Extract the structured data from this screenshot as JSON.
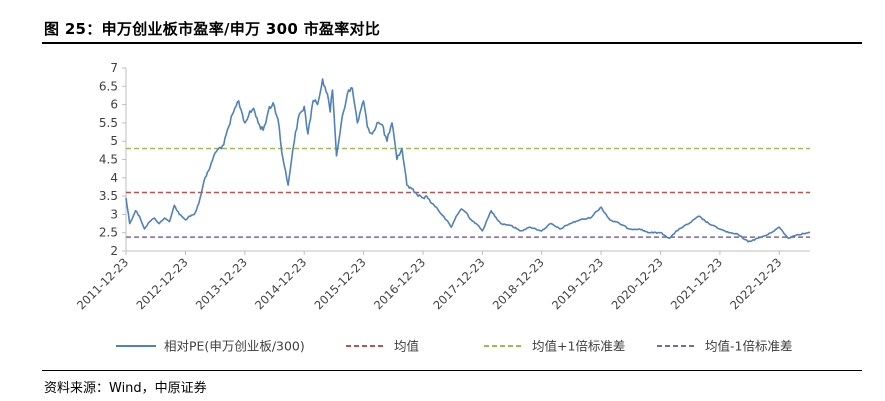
{
  "header": {
    "title": "图 25：申万创业板市盈率/申万 300 市盈率对比"
  },
  "footer": {
    "source": "资料来源：Wind，中原证券"
  },
  "chart_data": {
    "type": "line",
    "title": "",
    "xlabel": "",
    "ylabel": "",
    "ylim": [
      2,
      7
    ],
    "yticks": [
      "2",
      "2.5",
      "3",
      "3.5",
      "4",
      "4.5",
      "5",
      "5.5",
      "6",
      "6.5",
      "7"
    ],
    "xticks": [
      "2011-12-23",
      "2012-12-23",
      "2013-12-23",
      "2014-12-23",
      "2015-12-23",
      "2016-12-23",
      "2017-12-23",
      "2018-12-23",
      "2019-12-23",
      "2020-12-23",
      "2021-12-23",
      "2022-12-23"
    ],
    "xlim": [
      "2011-12-23",
      "2023-06-30"
    ],
    "grid": false,
    "legend": "bottom",
    "series": [
      {
        "name": "相对PE(申万创业板/300)",
        "color": "#4f81bd",
        "style": "solid",
        "x": [
          "2011-12-23",
          "2012-01-15",
          "2012-02-20",
          "2012-03-15",
          "2012-04-15",
          "2012-05-15",
          "2012-06-15",
          "2012-07-15",
          "2012-08-15",
          "2012-09-15",
          "2012-10-15",
          "2012-11-15",
          "2012-12-23",
          "2013-01-15",
          "2013-02-15",
          "2013-03-15",
          "2013-04-15",
          "2013-05-15",
          "2013-06-15",
          "2013-07-15",
          "2013-08-15",
          "2013-09-15",
          "2013-10-15",
          "2013-11-15",
          "2013-12-23",
          "2014-01-15",
          "2014-02-15",
          "2014-03-15",
          "2014-04-15",
          "2014-05-15",
          "2014-06-15",
          "2014-07-15",
          "2014-08-15",
          "2014-09-15",
          "2014-10-15",
          "2014-11-15",
          "2014-12-23",
          "2015-01-15",
          "2015-02-15",
          "2015-03-15",
          "2015-04-15",
          "2015-05-15",
          "2015-06-01",
          "2015-06-15",
          "2015-07-10",
          "2015-08-15",
          "2015-09-15",
          "2015-10-15",
          "2015-11-15",
          "2015-12-23",
          "2016-01-15",
          "2016-02-15",
          "2016-03-15",
          "2016-04-15",
          "2016-05-15",
          "2016-06-15",
          "2016-07-15",
          "2016-08-15",
          "2016-09-15",
          "2016-10-15",
          "2016-11-15",
          "2016-12-23",
          "2017-01-15",
          "2017-02-15",
          "2017-03-15",
          "2017-04-15",
          "2017-05-15",
          "2017-06-15",
          "2017-07-15",
          "2017-08-15",
          "2017-09-15",
          "2017-10-15",
          "2017-11-15",
          "2017-12-23",
          "2018-02-15",
          "2018-04-15",
          "2018-06-15",
          "2018-08-15",
          "2018-10-15",
          "2018-12-23",
          "2019-02-15",
          "2019-04-15",
          "2019-06-15",
          "2019-08-15",
          "2019-10-15",
          "2019-12-23",
          "2020-02-15",
          "2020-04-15",
          "2020-06-15",
          "2020-08-15",
          "2020-10-15",
          "2020-12-23",
          "2021-02-15",
          "2021-04-15",
          "2021-06-15",
          "2021-08-15",
          "2021-10-15",
          "2021-12-23",
          "2022-02-15",
          "2022-04-15",
          "2022-06-15",
          "2022-08-15",
          "2022-10-15",
          "2022-12-23",
          "2023-02-15",
          "2023-04-15",
          "2023-06-30"
        ],
        "values": [
          3.45,
          2.75,
          3.1,
          2.95,
          2.6,
          2.8,
          2.9,
          2.75,
          2.9,
          2.8,
          3.25,
          3.0,
          2.85,
          2.95,
          3.0,
          3.3,
          3.9,
          4.2,
          4.6,
          4.8,
          4.9,
          5.4,
          5.8,
          6.1,
          5.5,
          5.7,
          5.9,
          5.5,
          5.3,
          5.8,
          6.05,
          5.6,
          4.5,
          3.8,
          4.8,
          5.6,
          5.95,
          5.2,
          6.1,
          6.0,
          6.7,
          6.3,
          5.8,
          6.4,
          4.6,
          5.7,
          6.3,
          6.45,
          5.5,
          6.1,
          5.4,
          5.2,
          5.5,
          5.45,
          5.0,
          5.5,
          4.5,
          4.8,
          3.8,
          3.7,
          3.55,
          3.45,
          3.5,
          3.3,
          3.2,
          3.0,
          2.85,
          2.65,
          2.95,
          3.15,
          3.05,
          2.85,
          2.75,
          2.55,
          3.1,
          2.75,
          2.7,
          2.55,
          2.65,
          2.55,
          2.75,
          2.6,
          2.75,
          2.85,
          2.9,
          3.2,
          2.85,
          2.75,
          2.6,
          2.6,
          2.5,
          2.5,
          2.35,
          2.6,
          2.75,
          2.95,
          2.75,
          2.6,
          2.5,
          2.45,
          2.25,
          2.35,
          2.45,
          2.65,
          2.35,
          2.45,
          2.5
        ]
      },
      {
        "name": "均值",
        "color": "#c0504d",
        "style": "dashed",
        "value": 3.6
      },
      {
        "name": "均值+1倍标准差",
        "color": "#9bbb59",
        "style": "dashed",
        "value": 4.8
      },
      {
        "name": "均值-1倍标准差",
        "color": "#8064a2",
        "style": "dashed",
        "value": 2.38
      }
    ]
  }
}
